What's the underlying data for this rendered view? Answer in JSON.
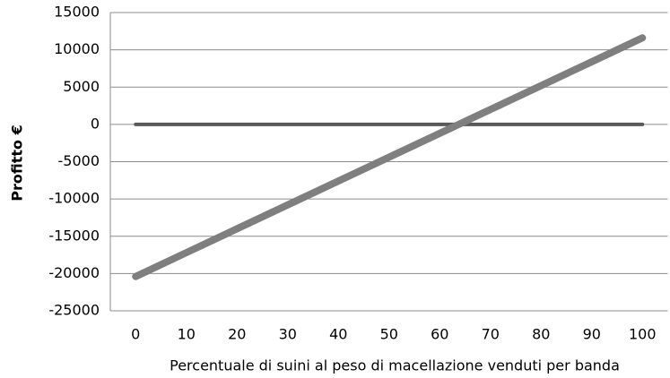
{
  "chart_data": {
    "type": "line",
    "xlabel": "Percentuale di suini al peso di macellazione venduti per banda",
    "ylabel": "Profitto €",
    "categories": [
      0,
      10,
      20,
      30,
      40,
      50,
      60,
      70,
      80,
      90,
      100
    ],
    "series": [
      {
        "color": "#595959",
        "values": [
          0,
          0,
          0,
          0,
          0,
          0,
          0,
          0,
          0,
          0,
          0
        ]
      },
      {
        "color": "#7f7f7f",
        "values": [
          -20400,
          -17200,
          -14000,
          -10800,
          -7600,
          -4400,
          -1200,
          2000,
          5200,
          8400,
          11600
        ]
      }
    ],
    "ylim": [
      -25000,
      15000
    ],
    "yticks": [
      -25000,
      -20000,
      -15000,
      -10000,
      -5000,
      0,
      5000,
      10000,
      15000
    ],
    "grid": true
  }
}
